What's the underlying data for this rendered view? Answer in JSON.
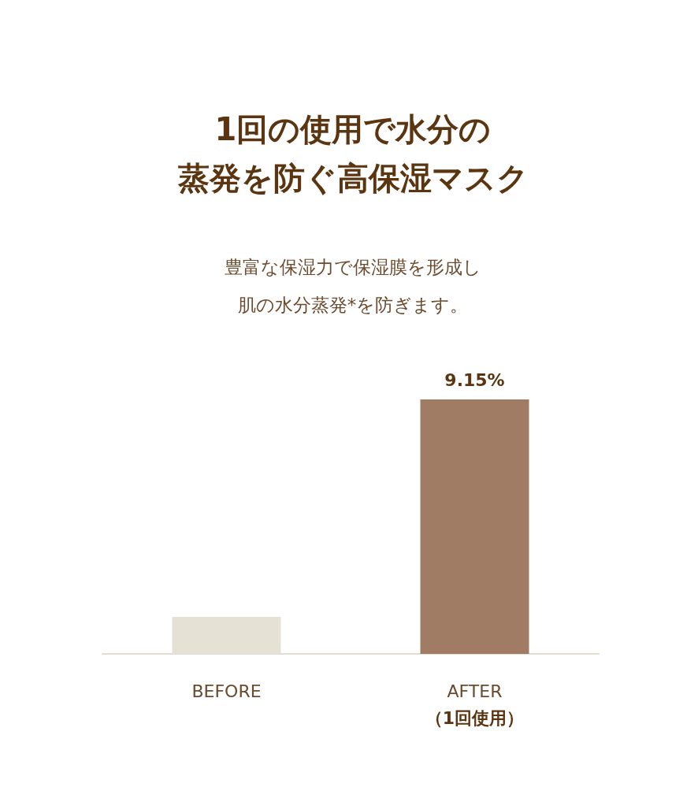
{
  "chart_data": {
    "type": "bar",
    "title": "1回の使用で水分の蒸発を防ぐ高保湿マスク",
    "subtitle": "豊富な保湿力で保湿膜を形成し肌の水分蒸発*を防ぎます。",
    "categories": [
      "BEFORE",
      "AFTER\n（1回使用）"
    ],
    "values": [
      1.33,
      9.15
    ],
    "colors": [
      "#e6e1d5",
      "#a07c64"
    ],
    "value_labels": [
      null,
      "9.15%"
    ]
  }
}
